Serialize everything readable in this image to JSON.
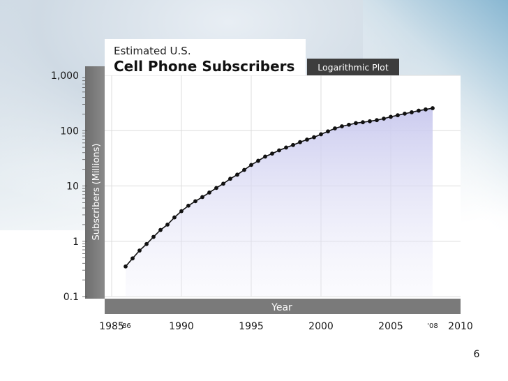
{
  "slide": {
    "page_number": "6"
  },
  "chart_data": {
    "type": "line",
    "title_line1": "Estimated U.S.",
    "title": "Cell Phone Subscribers",
    "subtitle_badge": "Logarithmic Plot",
    "xlabel": "Year",
    "ylabel": "Subscribers (Millions)",
    "yscale": "log",
    "ylim": [
      0.1,
      1000
    ],
    "xlim": [
      1985,
      2010
    ],
    "y_ticks": [
      {
        "value": 1000,
        "label": "1,000"
      },
      {
        "value": 100,
        "label": "100"
      },
      {
        "value": 10,
        "label": "10"
      },
      {
        "value": 1,
        "label": "1"
      },
      {
        "value": 0.1,
        "label": "0.1"
      }
    ],
    "x_ticks": [
      {
        "value": 1985,
        "label": "1985"
      },
      {
        "value": 1990,
        "label": "1990"
      },
      {
        "value": 1995,
        "label": "1995"
      },
      {
        "value": 2000,
        "label": "2000"
      },
      {
        "value": 2005,
        "label": "2005"
      },
      {
        "value": 2010,
        "label": "2010"
      }
    ],
    "x_annotations": [
      {
        "value": 1986,
        "label": "'86"
      },
      {
        "value": 2008,
        "label": "'08"
      }
    ],
    "grid": true,
    "series": [
      {
        "color": "#111111",
        "x": [
          1986,
          1986.5,
          1987,
          1987.5,
          1988,
          1988.5,
          1989,
          1989.5,
          1990,
          1990.5,
          1991,
          1991.5,
          1992,
          1992.5,
          1993,
          1993.5,
          1994,
          1994.5,
          1995,
          1995.5,
          1996,
          1996.5,
          1997,
          1997.5,
          1998,
          1998.5,
          1999,
          1999.5,
          2000,
          2000.5,
          2001,
          2001.5,
          2002,
          2002.5,
          2003,
          2003.5,
          2004,
          2004.5,
          2005,
          2005.5,
          2006,
          2006.5,
          2007,
          2007.5,
          2008
        ],
        "y": [
          0.35,
          0.49,
          0.68,
          0.89,
          1.2,
          1.6,
          2.0,
          2.7,
          3.5,
          4.4,
          5.3,
          6.3,
          7.6,
          9.2,
          11.0,
          13.5,
          16.0,
          19.5,
          24.0,
          28.5,
          34.0,
          38.5,
          44.0,
          49.5,
          55.0,
          62.0,
          69.0,
          76.0,
          86.0,
          97.0,
          110.0,
          120.0,
          128.0,
          137.0,
          142.0,
          148.0,
          155.0,
          165.0,
          178.0,
          190.0,
          203.0,
          215.0,
          230.0,
          242.0,
          255.0
        ]
      }
    ]
  }
}
